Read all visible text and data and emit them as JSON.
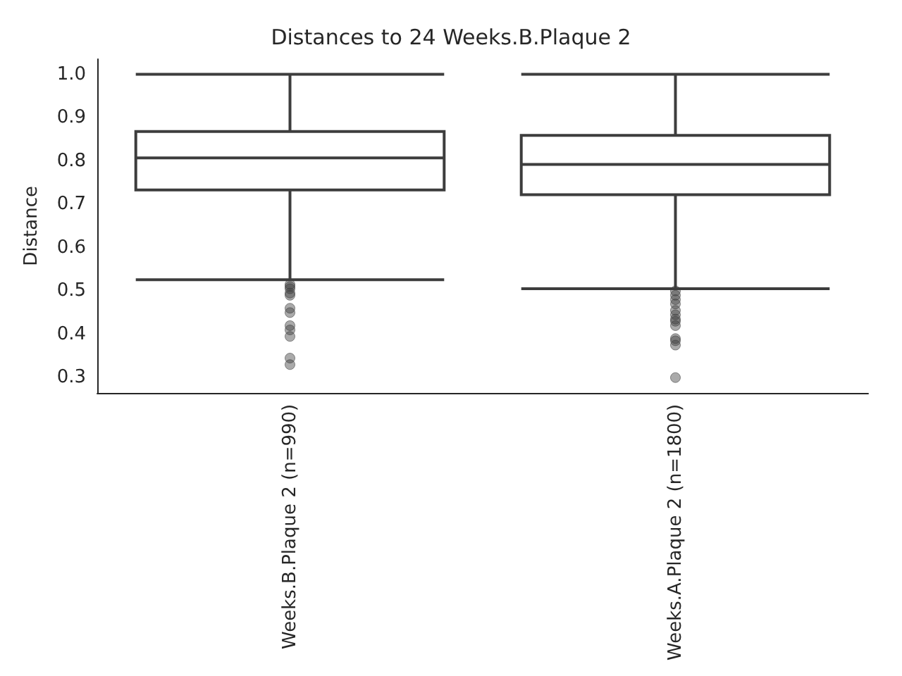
{
  "chart_data": {
    "type": "box",
    "title": "Distances to 24 Weeks.B.Plaque 2",
    "ylabel": "Distance",
    "categories": [
      "Weeks.B.Plaque 2 (n=990)",
      "Weeks.A.Plaque 2 (n=1800)"
    ],
    "boxes": [
      {
        "low": 0.526,
        "q1": 0.733,
        "median": 0.807,
        "q3": 0.868,
        "high": 1.0,
        "outliers": [
          0.515,
          0.51,
          0.505,
          0.495,
          0.49,
          0.46,
          0.45,
          0.42,
          0.41,
          0.395,
          0.345,
          0.33
        ]
      },
      {
        "low": 0.505,
        "q1": 0.722,
        "median": 0.792,
        "q3": 0.859,
        "high": 1.0,
        "outliers": [
          0.5,
          0.49,
          0.48,
          0.47,
          0.455,
          0.445,
          0.435,
          0.43,
          0.42,
          0.39,
          0.385,
          0.375,
          0.3
        ]
      }
    ],
    "ylim": [
      0.265,
      1.035
    ],
    "yticks": [
      0.3,
      0.4,
      0.5,
      0.6,
      0.7,
      0.8,
      0.9,
      {
        "value": 1,
        "label": "1.0"
      }
    ]
  }
}
